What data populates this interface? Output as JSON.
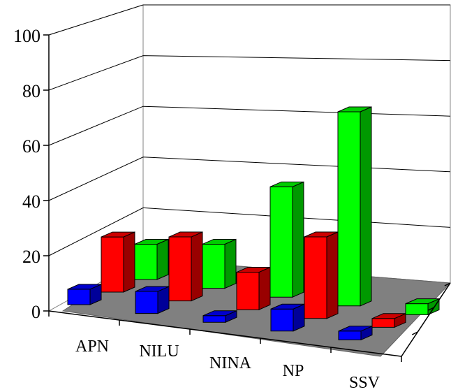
{
  "chart_data": {
    "type": "bar",
    "categories": [
      "APN",
      "NILU",
      "NINA",
      "NP",
      "SSV"
    ],
    "series": [
      {
        "values": [
          7,
          10,
          3,
          10,
          4
        ],
        "color": "#0000ff"
      },
      {
        "values": [
          25,
          29,
          17,
          37,
          4
        ],
        "color": "#ff0000"
      },
      {
        "values": [
          16,
          20,
          50,
          88,
          5
        ],
        "color": "#00ff00"
      }
    ],
    "ylim": [
      0,
      100
    ],
    "yticks": [
      "0",
      "20",
      "40",
      "60",
      "80",
      "100"
    ],
    "grid": true,
    "floor_color": "#808080",
    "title": "",
    "xlabel": "",
    "ylabel": ""
  }
}
